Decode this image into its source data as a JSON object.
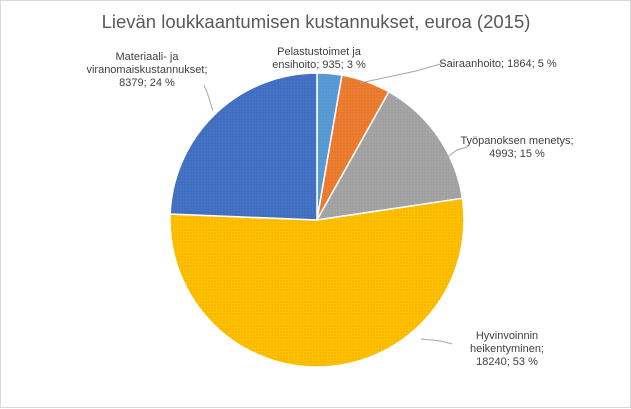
{
  "chart_data": {
    "type": "pie",
    "title": "Lievän loukkaantumisen kustannukset, euroa (2015)",
    "categories": [
      "Pelastustoimet ja ensihoito",
      "Sairaanhoito",
      "Työpanoksen menetys",
      "Hyvinvoinnin heikentyminen",
      "Materiaali- ja viranomaiskustannukset"
    ],
    "values": [
      935,
      1864,
      4993,
      18240,
      8379
    ],
    "percent_labels": [
      "3 %",
      "5 %",
      "15 %",
      "53 %",
      "24 %"
    ],
    "colors": [
      "#5b9bd5",
      "#ed7d31",
      "#a5a5a5",
      "#ffc000",
      "#4472c4"
    ],
    "legend": "none",
    "data_labels": [
      [
        "Pelastustoimet ja",
        "ensihoito; 935; 3 %"
      ],
      [
        "Sairaanhoito; 1864; 5 %"
      ],
      [
        "Työpanoksen menetys;",
        "4993; 15 %"
      ],
      [
        "Hyvinvoinnin",
        "heikentyminen;",
        "18240; 53 %"
      ],
      [
        "Materiaali- ja",
        "viranomaiskustannukset;",
        "8379; 24 %"
      ]
    ]
  }
}
